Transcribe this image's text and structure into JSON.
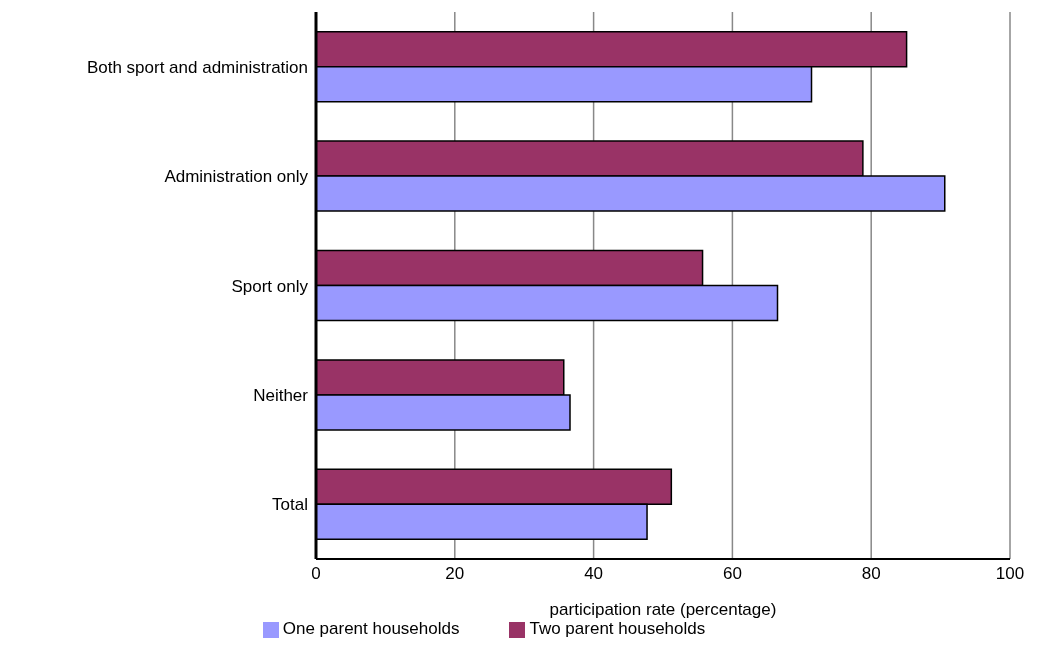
{
  "chart_data": {
    "type": "bar",
    "orientation": "horizontal",
    "xlabel": "participation rate (percentage)",
    "categories": [
      "Both sport and administration",
      "Administration only",
      "Sport only",
      "Neither",
      "Total"
    ],
    "series": [
      {
        "name": "Two parent households",
        "color": "#993366",
        "values": [
          85.1,
          78.8,
          55.7,
          35.7,
          51.2
        ]
      },
      {
        "name": "One parent households",
        "color": "#9999ff",
        "values": [
          71.4,
          90.6,
          66.5,
          36.6,
          47.7
        ]
      }
    ],
    "xlim": [
      0,
      100
    ],
    "xticks": [
      0,
      20,
      40,
      60,
      80,
      100
    ],
    "grid": "x",
    "legend": "bottom"
  }
}
